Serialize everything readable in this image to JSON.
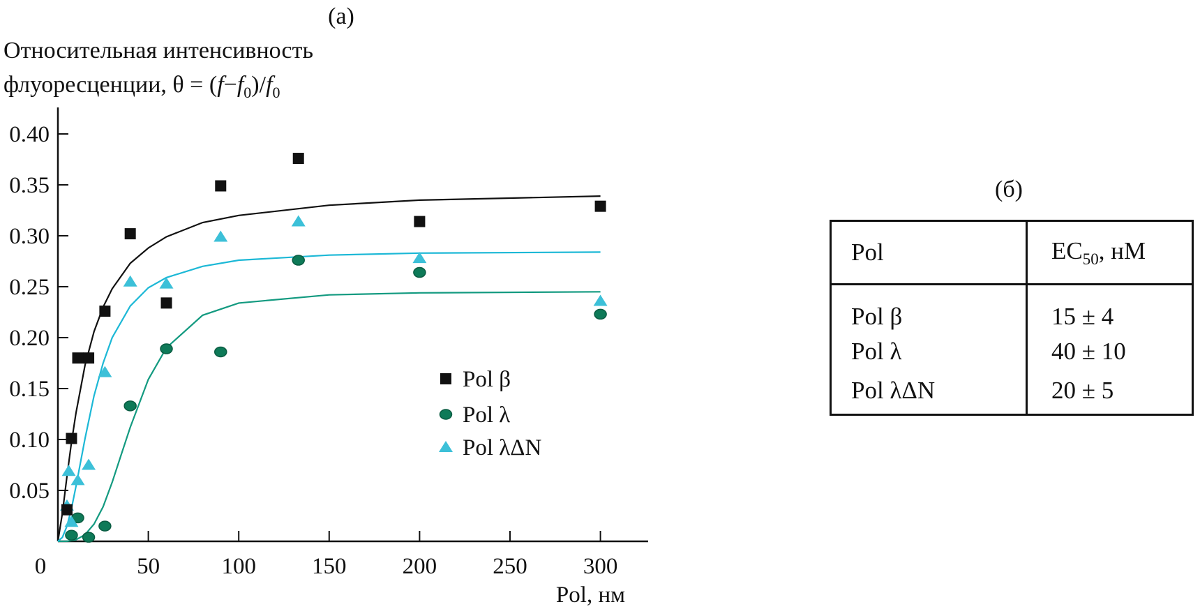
{
  "chart_data": {
    "type": "scatter",
    "panel_label": "(a)",
    "ylabel_line1": "Относительная интенсивность",
    "ylabel_line2": "флуоресценции, θ = (f−f0)/f0",
    "xlabel": "Pol, нм",
    "xlim": [
      0,
      330
    ],
    "ylim": [
      0,
      0.42
    ],
    "xticks": [
      0,
      50,
      100,
      150,
      200,
      250,
      300
    ],
    "yticks": [
      0.05,
      0.1,
      0.15,
      0.2,
      0.25,
      0.3,
      0.35,
      0.4
    ],
    "xtick_labels": [
      "0",
      "50",
      "100",
      "150",
      "200",
      "250",
      "300"
    ],
    "ytick_labels": [
      "0.05",
      "0.10",
      "0.15",
      "0.20",
      "0.25",
      "0.30",
      "0.35",
      "0.40"
    ],
    "grid": false,
    "legend_position": "center-right",
    "series": [
      {
        "name": "Pol β",
        "marker": "square",
        "color": "#111111",
        "line_color": "#111111",
        "x": [
          5,
          7.5,
          11,
          17,
          26,
          40,
          60,
          90,
          133,
          200,
          300
        ],
        "y": [
          0.031,
          0.101,
          0.18,
          0.18,
          0.226,
          0.302,
          0.234,
          0.349,
          0.376,
          0.314,
          0.329
        ],
        "fit": {
          "x": [
            0,
            2.5,
            5,
            7.5,
            10,
            15,
            20,
            25,
            30,
            40,
            50,
            60,
            80,
            100,
            150,
            200,
            250,
            300
          ],
          "y": [
            0,
            0.028,
            0.064,
            0.097,
            0.126,
            0.173,
            0.206,
            0.23,
            0.248,
            0.273,
            0.288,
            0.299,
            0.313,
            0.32,
            0.33,
            0.335,
            0.337,
            0.339
          ]
        }
      },
      {
        "name": "Pol λ",
        "marker": "circle",
        "color": "#0e7a58",
        "line_color": "#139a80",
        "x": [
          7.5,
          11,
          17,
          26,
          40,
          60,
          90,
          133,
          200,
          300
        ],
        "y": [
          0.006,
          0.023,
          0.004,
          0.015,
          0.133,
          0.189,
          0.186,
          0.276,
          0.264,
          0.223
        ],
        "fit": {
          "x": [
            0,
            5,
            10,
            15,
            20,
            25,
            30,
            35,
            40,
            50,
            60,
            80,
            100,
            150,
            200,
            300
          ],
          "y": [
            0,
            0.0001,
            0.0016,
            0.0065,
            0.017,
            0.034,
            0.058,
            0.085,
            0.112,
            0.159,
            0.19,
            0.222,
            0.234,
            0.242,
            0.244,
            0.245
          ]
        }
      },
      {
        "name": "Pol λΔN",
        "marker": "triangle",
        "color": "#3cc0d8",
        "line_color": "#1cb8d6",
        "x": [
          5,
          6,
          7.5,
          11,
          17,
          26,
          40,
          60,
          90,
          133,
          200,
          300
        ],
        "y": [
          0.035,
          0.069,
          0.019,
          0.06,
          0.075,
          0.166,
          0.255,
          0.253,
          0.299,
          0.314,
          0.278,
          0.236
        ],
        "fit": {
          "x": [
            0,
            2.5,
            5,
            7.5,
            10,
            15,
            20,
            25,
            30,
            40,
            50,
            60,
            80,
            100,
            150,
            200,
            300
          ],
          "y": [
            0,
            0.004,
            0.015,
            0.032,
            0.054,
            0.101,
            0.143,
            0.175,
            0.2,
            0.231,
            0.249,
            0.259,
            0.27,
            0.276,
            0.281,
            0.283,
            0.284
          ]
        }
      }
    ]
  },
  "table": {
    "panel_label": "(б)",
    "headers": [
      "Pol",
      "EC",
      "50",
      ", нМ"
    ],
    "rows": [
      {
        "pol": "Pol β",
        "ec50": "15 ± 4"
      },
      {
        "pol": "Pol λ",
        "ec50": "40 ± 10"
      },
      {
        "pol": "Pol λΔN",
        "ec50": "20 ± 5"
      }
    ]
  }
}
